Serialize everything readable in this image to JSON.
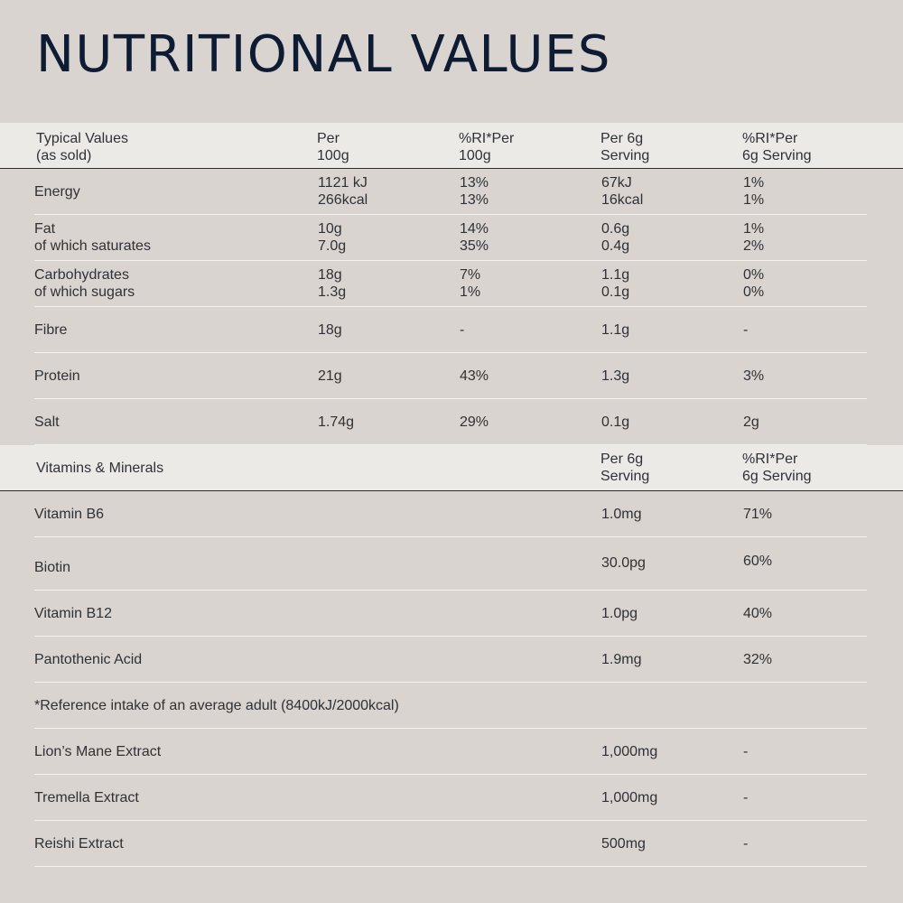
{
  "title": "NUTRITIONAL VALUES",
  "header": {
    "col1": [
      "Typical Values",
      "(as sold)"
    ],
    "col2": [
      "Per",
      "100g"
    ],
    "col3": [
      "%RI*Per",
      "100g"
    ],
    "col4": [
      "Per 6g",
      "Serving"
    ],
    "col5": [
      "%RI*Per",
      "6g Serving"
    ]
  },
  "nutrients": [
    {
      "name": [
        "Energy"
      ],
      "per100": [
        "1121 kJ",
        "266kcal"
      ],
      "ri100": [
        "13%",
        "13%"
      ],
      "perServing": [
        "67kJ",
        "16kcal"
      ],
      "riServing": [
        "1%",
        "1%"
      ]
    },
    {
      "name": [
        "Fat",
        "of which saturates"
      ],
      "per100": [
        "10g",
        "7.0g"
      ],
      "ri100": [
        "14%",
        "35%"
      ],
      "perServing": [
        "0.6g",
        "0.4g"
      ],
      "riServing": [
        "1%",
        "2%"
      ]
    },
    {
      "name": [
        "Carbohydrates",
        "of which sugars"
      ],
      "per100": [
        "18g",
        "1.3g"
      ],
      "ri100": [
        "7%",
        "1%"
      ],
      "perServing": [
        "1.1g",
        "0.1g"
      ],
      "riServing": [
        "0%",
        "0%"
      ]
    },
    {
      "name": [
        "Fibre"
      ],
      "per100": [
        "18g"
      ],
      "ri100": [
        "-"
      ],
      "perServing": [
        "1.1g"
      ],
      "riServing": [
        "-"
      ]
    },
    {
      "name": [
        "Protein"
      ],
      "per100": [
        "21g"
      ],
      "ri100": [
        "43%"
      ],
      "perServing": [
        "1.3g"
      ],
      "riServing": [
        "3%"
      ]
    },
    {
      "name": [
        "Salt"
      ],
      "per100": [
        "1.74g"
      ],
      "ri100": [
        "29%"
      ],
      "perServing": [
        "0.1g"
      ],
      "riServing": [
        "2g"
      ]
    }
  ],
  "vitamins_header": {
    "col1": "Vitamins & Minerals",
    "col4": [
      "Per 6g",
      "Serving"
    ],
    "col5": [
      "%RI*Per",
      "6g Serving"
    ]
  },
  "vitamins": [
    {
      "name": "Vitamin B6",
      "perServing": "1.0mg",
      "riServing": "71%"
    },
    {
      "name": "Biotin",
      "perServing": "30.0pg",
      "riServing": "60%"
    },
    {
      "name": "Vitamin B12",
      "perServing": "1.0pg",
      "riServing": "40%"
    },
    {
      "name": "Pantothenic Acid",
      "perServing": "1.9mg",
      "riServing": "32%"
    }
  ],
  "footnote": "*Reference intake of an average adult (8400kJ/2000kcal)",
  "extracts": [
    {
      "name": "Lion’s Mane Extract",
      "perServing": "1,000mg",
      "riServing": "-"
    },
    {
      "name": "Tremella Extract",
      "perServing": "1,000mg",
      "riServing": "-"
    },
    {
      "name": "Reishi Extract",
      "perServing": "500mg",
      "riServing": "-"
    }
  ]
}
